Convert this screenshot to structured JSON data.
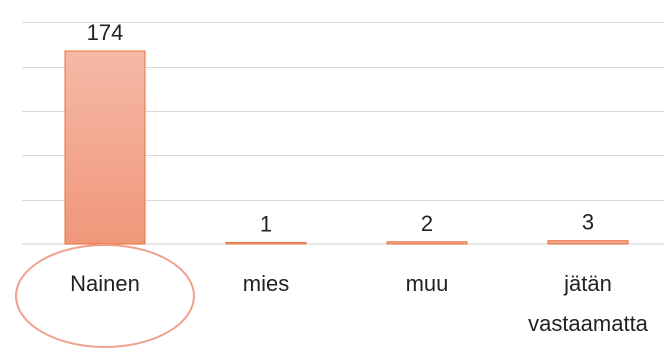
{
  "chart_data": {
    "type": "bar",
    "categories": [
      "Nainen",
      "mies",
      "muu",
      "jätän vastaamatta"
    ],
    "category_lines": [
      [
        "Nainen"
      ],
      [
        "mies"
      ],
      [
        "muu"
      ],
      [
        "jätän",
        "vastaamatta"
      ]
    ],
    "values": [
      174,
      1,
      2,
      3
    ],
    "data_labels": [
      "174",
      "1",
      "2",
      "3"
    ],
    "title": "",
    "xlabel": "",
    "ylabel": "",
    "ylim": [
      0,
      200
    ],
    "grid": true,
    "gridline_values": [
      40,
      80,
      120,
      160,
      200
    ],
    "bar_gradient": [
      "#f5b9a6",
      "#f0977a"
    ],
    "bar_border": "#e8703f",
    "gridline_color": "#d9d9d9",
    "highlight": {
      "category_index": 0,
      "shape": "ellipse",
      "color": "#f0a08c"
    }
  }
}
